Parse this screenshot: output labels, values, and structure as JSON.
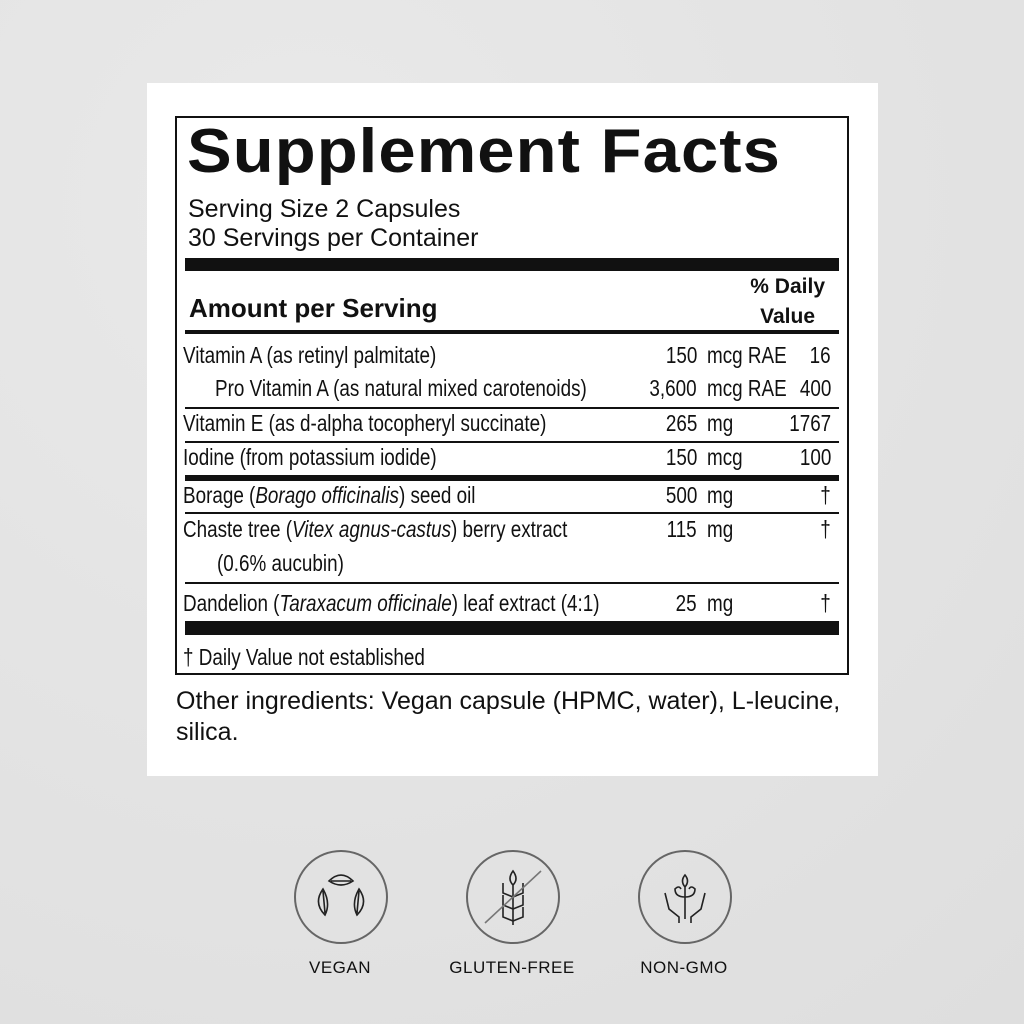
{
  "title": "Supplement Facts",
  "serving_size": "Serving Size 2 Capsules",
  "servings_per_container": "30 Servings per Container",
  "amount_header": "Amount per Serving",
  "dv_header_1": "% Daily",
  "dv_header_2": "Value",
  "rows": [
    {
      "name": "Vitamin A (as retinyl palmitate)",
      "amount": "150",
      "unit": "mcg RAE",
      "dv": "16"
    },
    {
      "name": "Pro Vitamin A (as natural mixed carotenoids)",
      "amount": "3,600",
      "unit": "mcg RAE",
      "dv": "400"
    },
    {
      "name": "Vitamin E (as d-alpha tocopheryl succinate)",
      "amount": "265",
      "unit": "mg",
      "dv": "1767"
    },
    {
      "name": "Iodine (from potassium iodide)",
      "amount": "150",
      "unit": "mcg",
      "dv": "100"
    },
    {
      "name_pre": "Borage (",
      "name_italic": "Borago officinalis",
      "name_post": ") seed oil",
      "amount": "500",
      "unit": "mg",
      "dv": "†"
    },
    {
      "name_pre": "Chaste tree (",
      "name_italic": "Vitex agnus-castus",
      "name_post": ") berry extract",
      "name_line2": "(0.6% aucubin)",
      "amount": "115",
      "unit": "mg",
      "dv": "†"
    },
    {
      "name_pre": "Dandelion (",
      "name_italic": "Taraxacum officinale",
      "name_post": ") leaf extract (4:1)",
      "amount": "25",
      "unit": "mg",
      "dv": "†"
    }
  ],
  "footnote": "† Daily Value not established",
  "other_ingredients": "Other ingredients: Vegan capsule (HPMC, water), L-leucine, silica.",
  "badges": [
    {
      "label": "VEGAN",
      "icon": "leaves-cycle-icon"
    },
    {
      "label": "GLUTEN-FREE",
      "icon": "wheat-crossed-icon"
    },
    {
      "label": "NON-GMO",
      "icon": "hands-plant-icon"
    }
  ]
}
